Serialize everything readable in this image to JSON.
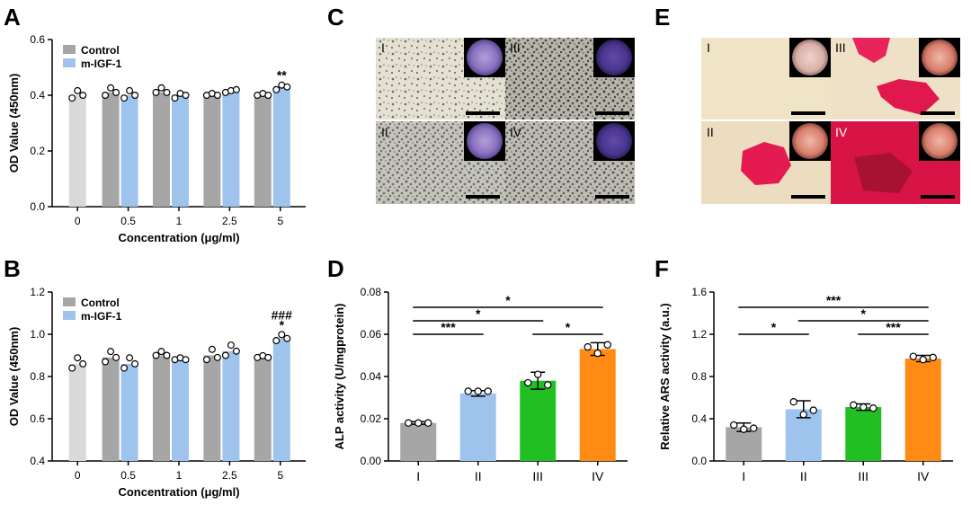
{
  "panels": {
    "A": "A",
    "B": "B",
    "C": "C",
    "D": "D",
    "E": "E",
    "F": "F"
  },
  "colors": {
    "control": "#a6a6a6",
    "migf": "#9ec4ee",
    "zero": "#d9d9d9",
    "g1": "#a6a6a6",
    "g2": "#9ec4ee",
    "g3": "#22bf22",
    "g4": "#ff8a14"
  },
  "chart_data": [
    {
      "id": "A",
      "type": "bar",
      "ylabel": "OD Value (450nm)",
      "xlabel": "Concentration (μg/ml)",
      "categories": [
        "0",
        "0.5",
        "1",
        "2.5",
        "5"
      ],
      "ylim": [
        0,
        0.6
      ],
      "yticks": [
        "0.0",
        "0.2",
        "0.4",
        "0.6"
      ],
      "legend": [
        "Control",
        "m-IGF-1"
      ],
      "series": [
        {
          "name": "Control",
          "values": [
            0.4,
            0.41,
            0.41,
            0.4,
            0.4
          ],
          "points": [
            [
              0.39,
              0.41,
              0.4
            ],
            [
              0.4,
              0.42,
              0.41
            ],
            [
              0.41,
              0.42,
              0.41
            ],
            [
              0.4,
              0.4,
              0.4
            ],
            [
              0.4,
              0.4,
              0.4
            ]
          ]
        },
        {
          "name": "m-IGF-1",
          "values": [
            null,
            0.4,
            0.4,
            0.41,
            0.43
          ],
          "points": [
            null,
            [
              0.39,
              0.41,
              0.4
            ],
            [
              0.39,
              0.4,
              0.4
            ],
            [
              0.41,
              0.41,
              0.42
            ],
            [
              0.42,
              0.43,
              0.43
            ]
          ]
        }
      ],
      "annotations": [
        {
          "category": "5",
          "labels": [
            "**"
          ]
        }
      ]
    },
    {
      "id": "B",
      "type": "bar",
      "ylabel": "OD Value (450nm)",
      "xlabel": "Concentration (μg/ml)",
      "categories": [
        "0",
        "0.5",
        "1",
        "2.5",
        "5"
      ],
      "ylim": [
        0.4,
        1.2
      ],
      "yticks": [
        "0.4",
        "0.6",
        "0.8",
        "1.0",
        "1.2"
      ],
      "legend": [
        "Control",
        "m-IGF-1"
      ],
      "series": [
        {
          "name": "Control",
          "values": [
            0.86,
            0.89,
            0.9,
            0.9,
            0.89
          ],
          "points": [
            [
              0.84,
              0.88,
              0.86
            ],
            [
              0.87,
              0.91,
              0.89
            ],
            [
              0.9,
              0.91,
              0.9
            ],
            [
              0.88,
              0.92,
              0.89
            ],
            [
              0.89,
              0.89,
              0.89
            ]
          ]
        },
        {
          "name": "m-IGF-1",
          "values": [
            null,
            0.86,
            0.88,
            0.92,
            0.98
          ],
          "points": [
            null,
            [
              0.84,
              0.88,
              0.86
            ],
            [
              0.88,
              0.88,
              0.88
            ],
            [
              0.9,
              0.94,
              0.92
            ],
            [
              0.97,
              0.99,
              0.98
            ]
          ]
        }
      ],
      "annotations": [
        {
          "category": "5",
          "labels": [
            "###",
            "*"
          ]
        }
      ]
    },
    {
      "id": "D",
      "type": "bar",
      "ylabel": "ALP activity (U/mgprotein)",
      "categories": [
        "I",
        "II",
        "III",
        "IV"
      ],
      "ylim": [
        0,
        0.08
      ],
      "yticks": [
        "0.00",
        "0.02",
        "0.04",
        "0.06",
        "0.08"
      ],
      "values": [
        0.018,
        0.032,
        0.038,
        0.053
      ],
      "errors": [
        0.0006,
        0.0013,
        0.004,
        0.003
      ],
      "points": [
        [
          0.018,
          0.018,
          0.018
        ],
        [
          0.033,
          0.033,
          0.033
        ],
        [
          0.037,
          0.041,
          0.036
        ],
        [
          0.054,
          0.051,
          0.055
        ]
      ],
      "significance": [
        {
          "from": "I",
          "to": "II",
          "label": "***"
        },
        {
          "from": "I",
          "to": "III",
          "label": "*"
        },
        {
          "from": "III",
          "to": "IV",
          "label": "*"
        },
        {
          "from": "I",
          "to": "IV",
          "label": "*"
        }
      ]
    },
    {
      "id": "F",
      "type": "bar",
      "ylabel": "Relative ARS activity (a.u.)",
      "categories": [
        "I",
        "II",
        "III",
        "IV"
      ],
      "ylim": [
        0,
        1.6
      ],
      "yticks": [
        "0.0",
        "0.4",
        "0.8",
        "1.2",
        "1.6"
      ],
      "values": [
        0.32,
        0.49,
        0.51,
        0.97
      ],
      "errors": [
        0.04,
        0.08,
        0.03,
        0.03
      ],
      "points": [
        [
          0.34,
          0.3,
          0.31
        ],
        [
          0.56,
          0.44,
          0.48
        ],
        [
          0.53,
          0.51,
          0.5
        ],
        [
          0.99,
          0.96,
          0.98
        ]
      ],
      "significance": [
        {
          "from": "I",
          "to": "II",
          "label": "*"
        },
        {
          "from": "II",
          "to": "IV",
          "label": "*"
        },
        {
          "from": "III",
          "to": "IV",
          "label": "***"
        },
        {
          "from": "I",
          "to": "IV",
          "label": "***"
        }
      ]
    }
  ],
  "micrographs": {
    "C": {
      "labels": [
        "I",
        "III",
        "II",
        "IV"
      ],
      "stain": "crystal-violet"
    },
    "E": {
      "labels": [
        "I",
        "III",
        "II",
        "IV"
      ],
      "stain": "alizarin-red"
    }
  }
}
